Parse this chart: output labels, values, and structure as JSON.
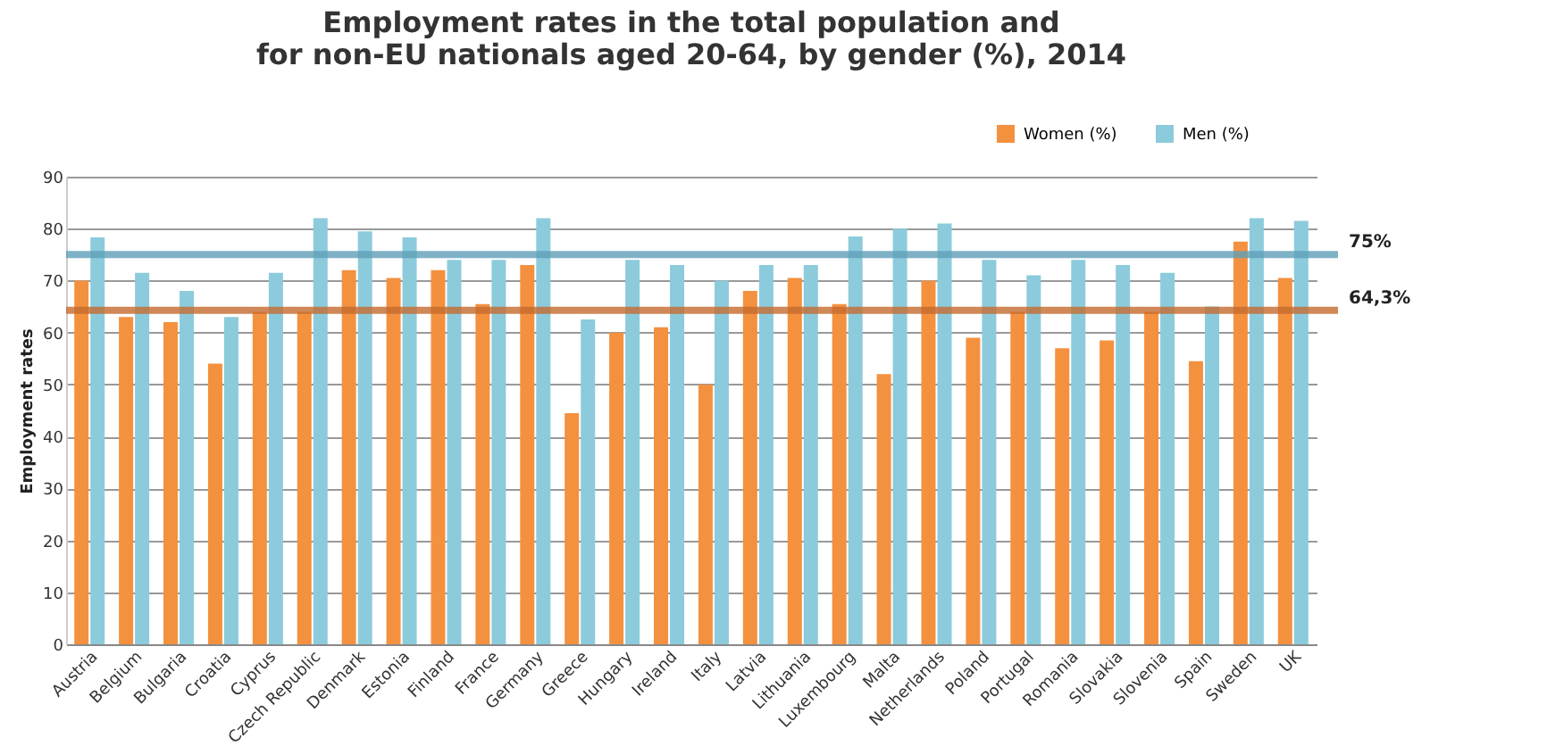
{
  "chart_data": {
    "type": "bar",
    "title": "Employment rates in the total population and\nfor non-EU nationals aged 20-64, by gender (%), 2014",
    "ylabel": "Employment rates",
    "categories": [
      "Austria",
      "Belgium",
      "Bulgaria",
      "Croatia",
      "Cyprus",
      "Czech Republic",
      "Denmark",
      "Estonia",
      "Finland",
      "France",
      "Germany",
      "Greece",
      "Hungary",
      "Ireland",
      "Italy",
      "Latvia",
      "Lithuania",
      "Luxembourg",
      "Malta",
      "Netherlands",
      "Poland",
      "Portugal",
      "Romania",
      "Slovakia",
      "Slovenia",
      "Spain",
      "Sweden",
      "UK"
    ],
    "series": [
      {
        "name": "Women (%)",
        "color": "#f4913f",
        "values": [
          70,
          63,
          62,
          54,
          64,
          64,
          72,
          70.5,
          72,
          65.5,
          73,
          44.5,
          60,
          61,
          50,
          68,
          70.5,
          65.5,
          52,
          70,
          59,
          64,
          57,
          58.5,
          64,
          54.5,
          77.5,
          70.5
        ]
      },
      {
        "name": "Men (%)",
        "color": "#8ccbdb",
        "values": [
          78.3,
          71.5,
          68,
          63,
          71.5,
          82,
          79.5,
          78.3,
          74,
          74,
          82,
          62.5,
          74,
          73,
          70,
          73,
          73,
          78.5,
          80,
          81,
          74,
          71,
          74,
          73,
          71.5,
          65,
          82,
          81.5
        ]
      }
    ],
    "ylim": [
      0,
      90
    ],
    "yticks": [
      0,
      10,
      20,
      30,
      40,
      50,
      60,
      70,
      80,
      90
    ],
    "grid": "y",
    "legend": "top right",
    "ref_lines": [
      {
        "axis": "y",
        "value": 75,
        "label": "75%",
        "color": "#5f9fb8"
      },
      {
        "axis": "y",
        "value": 64.3,
        "label": "64,3%",
        "color": "#c46a2e"
      }
    ]
  }
}
